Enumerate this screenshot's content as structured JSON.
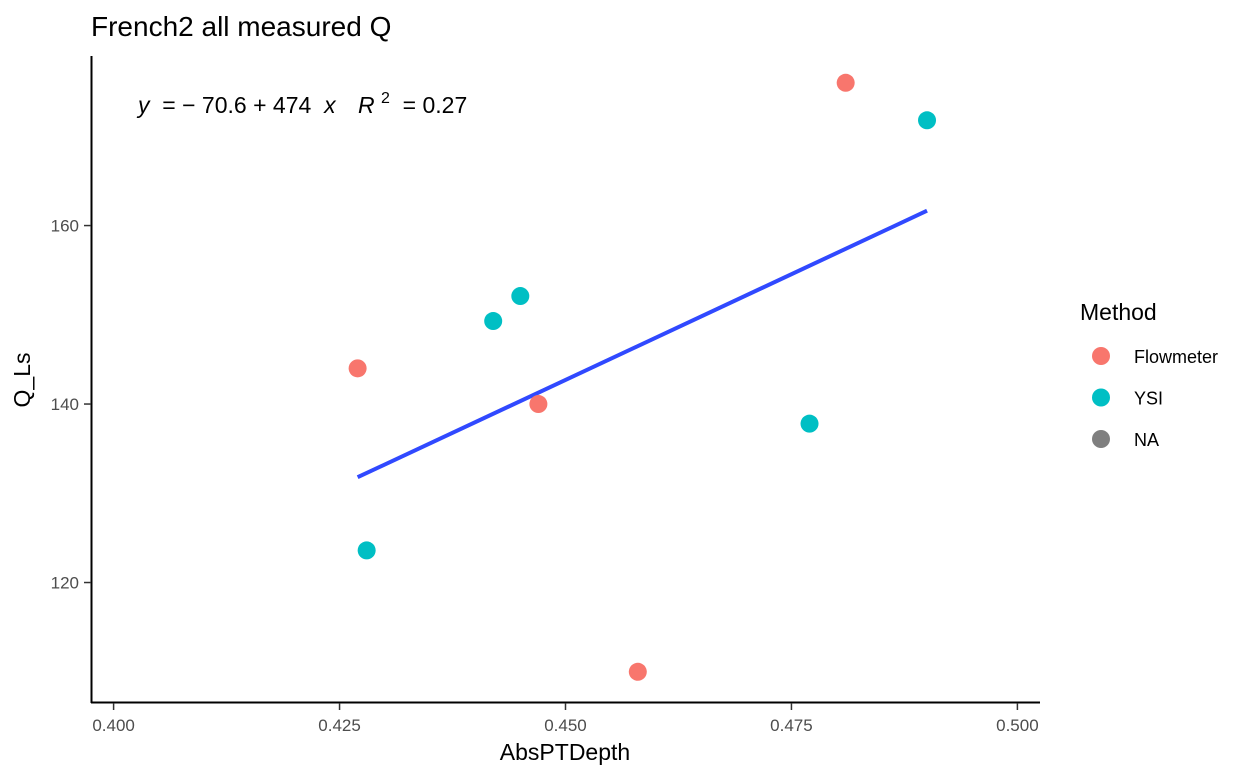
{
  "chart_data": {
    "type": "scatter",
    "title": "French2 all measured Q",
    "xlabel": "AbsPTDepth",
    "ylabel": "Q_Ls",
    "xlim": [
      0.3975,
      0.5025
    ],
    "ylim": [
      106.5,
      179
    ],
    "x_ticks": [
      0.4,
      0.425,
      0.45,
      0.475,
      0.5
    ],
    "x_tick_labels": [
      "0.400",
      "0.425",
      "0.450",
      "0.475",
      "0.500"
    ],
    "y_ticks": [
      120,
      140,
      160
    ],
    "y_tick_labels": [
      "120",
      "140",
      "160"
    ],
    "grid": false,
    "legend": {
      "title": "Method",
      "position": "right",
      "entries": [
        {
          "label": "Flowmeter",
          "color": "#F8766D"
        },
        {
          "label": "YSI",
          "color": "#00BFC4"
        },
        {
          "label": "NA",
          "color": "#7F7F7F"
        }
      ]
    },
    "series": [
      {
        "name": "Flowmeter",
        "color": "#F8766D",
        "points": [
          {
            "x": 0.427,
            "y": 144
          },
          {
            "x": 0.447,
            "y": 140
          },
          {
            "x": 0.458,
            "y": 110
          },
          {
            "x": 0.481,
            "y": 176
          }
        ]
      },
      {
        "name": "YSI",
        "color": "#00BFC4",
        "points": [
          {
            "x": 0.428,
            "y": 123.6
          },
          {
            "x": 0.442,
            "y": 149.3
          },
          {
            "x": 0.445,
            "y": 152.1
          },
          {
            "x": 0.477,
            "y": 137.8
          },
          {
            "x": 0.49,
            "y": 171.8
          }
        ]
      }
    ],
    "fit_line": {
      "color": "#3049FF",
      "intercept": -70.6,
      "slope": 474,
      "x_range": [
        0.427,
        0.49
      ]
    },
    "annotation": {
      "y_var": "y",
      "eq_rest": " = − 70.6 + 474 ",
      "x_var": "x",
      "r_var": "R",
      "r_sup": "2",
      "r_rest": " = 0.27"
    }
  }
}
